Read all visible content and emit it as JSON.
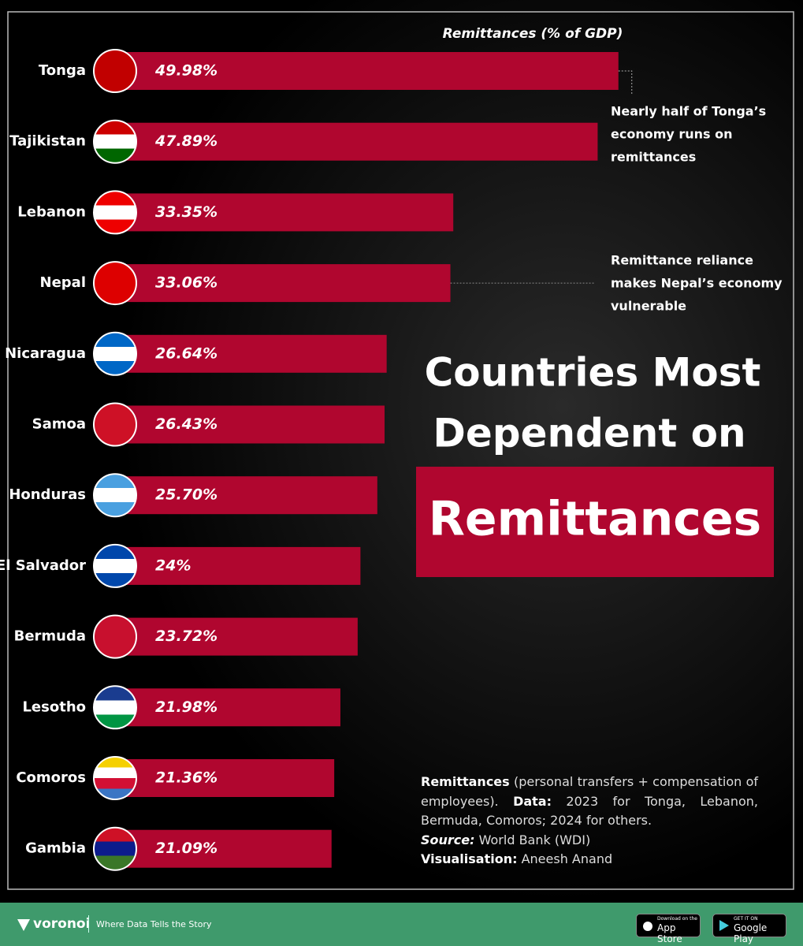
{
  "chart_data": {
    "type": "bar",
    "orientation": "horizontal",
    "axis_title": "Remittances (% of GDP)",
    "title_lines": [
      "Countries Most",
      "Dependent on"
    ],
    "title_highlight": "Remittances",
    "categories": [
      "Tonga",
      "Tajikistan",
      "Lebanon",
      "Nepal",
      "Nicaragua",
      "Samoa",
      "Honduras",
      "El Salvador",
      "Bermuda",
      "Lesotho",
      "Comoros",
      "Gambia"
    ],
    "values": [
      49.98,
      47.89,
      33.35,
      33.06,
      26.64,
      26.43,
      25.7,
      24,
      23.72,
      21.98,
      21.36,
      21.09
    ],
    "value_labels": [
      "49.98%",
      "47.89%",
      "33.35%",
      "33.06%",
      "26.64%",
      "26.43%",
      "25.70%",
      "24%",
      "23.72%",
      "21.98%",
      "21.36%",
      "21.09%"
    ],
    "color": "#b0062f",
    "annotations": [
      {
        "category": "Tonga",
        "lines": [
          "Nearly half of Tonga’s",
          "economy runs on",
          "remittances"
        ]
      },
      {
        "category": "Nepal",
        "lines": [
          "Remittance reliance",
          "makes Nepal’s economy",
          "vulnerable"
        ]
      }
    ],
    "notes": {
      "term": "Remittances",
      "definition": "(personal transfers + compensation of employees).",
      "data_label": "Data:",
      "data_text": "2023 for Tonga, Lebanon, Bermuda, Comoros; 2024 for others.",
      "source_label": "Source:",
      "source_text": "World Bank (WDI)",
      "vis_label": "Visualisation:",
      "vis_text": "Aneesh Anand"
    }
  },
  "footer": {
    "brand": "voronoi",
    "tagline": "Where Data Tells the Story",
    "app_store_small": "Download on the",
    "app_store": "App Store",
    "google_play_small": "GET IT ON",
    "google_play": "Google Play"
  }
}
